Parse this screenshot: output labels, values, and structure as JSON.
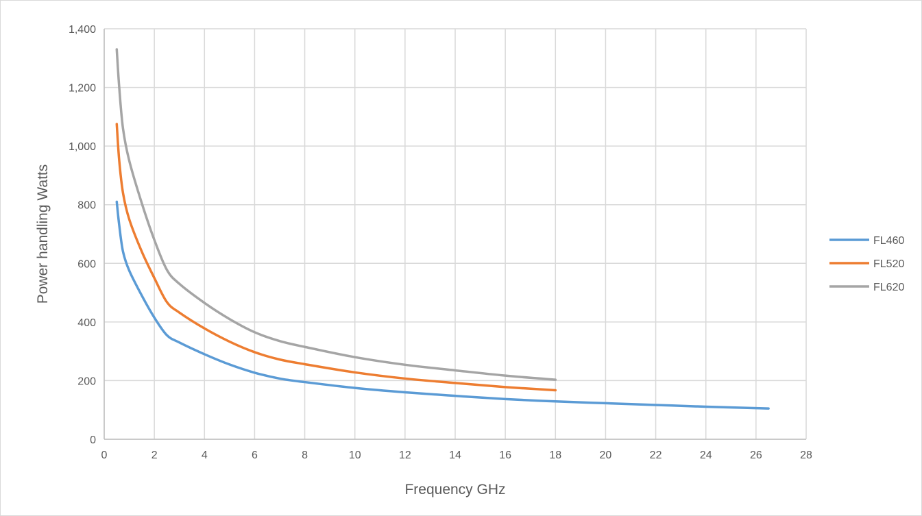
{
  "chart_data": {
    "type": "line",
    "title": "",
    "xlabel": "Frequency GHz",
    "ylabel": "Power handling Watts",
    "xlim": [
      0,
      28
    ],
    "ylim": [
      0,
      1400
    ],
    "x_ticks": [
      "0",
      "2",
      "4",
      "6",
      "8",
      "10",
      "12",
      "14",
      "16",
      "18",
      "20",
      "22",
      "24",
      "26",
      "28"
    ],
    "y_ticks": [
      "0",
      "200",
      "400",
      "600",
      "800",
      "1,000",
      "1,200",
      "1,400"
    ],
    "grid": true,
    "legend": "right",
    "series": [
      {
        "name": "FL460",
        "color": "#5b9bd5",
        "points": [
          [
            0.5,
            810
          ],
          [
            0.6,
            730
          ],
          [
            0.75,
            640
          ],
          [
            1,
            575
          ],
          [
            1.5,
            490
          ],
          [
            2,
            415
          ],
          [
            2.5,
            355
          ],
          [
            3,
            330
          ],
          [
            4,
            290
          ],
          [
            5,
            255
          ],
          [
            6,
            227
          ],
          [
            7,
            207
          ],
          [
            8,
            195
          ],
          [
            10,
            175
          ],
          [
            12,
            160
          ],
          [
            14,
            148
          ],
          [
            16,
            137
          ],
          [
            18,
            129
          ],
          [
            20,
            123
          ],
          [
            22,
            117
          ],
          [
            24,
            111
          ],
          [
            26.5,
            105
          ]
        ]
      },
      {
        "name": "FL520",
        "color": "#ed7d31",
        "points": [
          [
            0.5,
            1075
          ],
          [
            0.6,
            950
          ],
          [
            0.75,
            840
          ],
          [
            1,
            750
          ],
          [
            1.5,
            640
          ],
          [
            2,
            550
          ],
          [
            2.5,
            468
          ],
          [
            3,
            432
          ],
          [
            4,
            378
          ],
          [
            5,
            333
          ],
          [
            6,
            297
          ],
          [
            7,
            272
          ],
          [
            8,
            256
          ],
          [
            10,
            228
          ],
          [
            12,
            207
          ],
          [
            14,
            192
          ],
          [
            16,
            178
          ],
          [
            18,
            167
          ]
        ]
      },
      {
        "name": "FL620",
        "color": "#a5a5a5",
        "points": [
          [
            0.5,
            1330
          ],
          [
            0.6,
            1200
          ],
          [
            0.75,
            1060
          ],
          [
            1,
            950
          ],
          [
            1.5,
            805
          ],
          [
            2,
            680
          ],
          [
            2.5,
            578
          ],
          [
            3,
            530
          ],
          [
            4,
            465
          ],
          [
            5,
            410
          ],
          [
            6,
            365
          ],
          [
            7,
            335
          ],
          [
            8,
            315
          ],
          [
            10,
            280
          ],
          [
            12,
            254
          ],
          [
            14,
            235
          ],
          [
            16,
            217
          ],
          [
            18,
            203
          ]
        ]
      }
    ]
  }
}
